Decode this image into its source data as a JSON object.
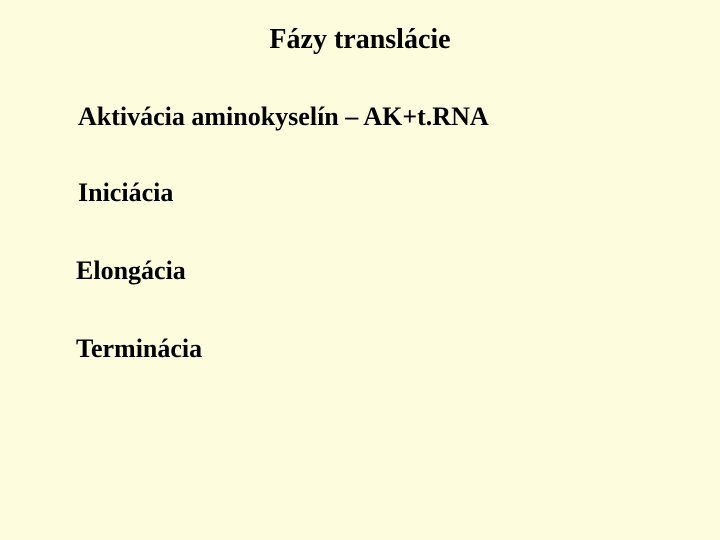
{
  "background_color": "#fdfddd",
  "text_color": "#000000",
  "font_family": "Times New Roman",
  "title": {
    "text": "Fázy translácie",
    "fontsize": 28,
    "bold": true
  },
  "lines": [
    {
      "text": "Aktivácia aminokyselín – AK+t.RNA",
      "fontsize": 26,
      "bold": true
    },
    {
      "text": "Iniciácia",
      "fontsize": 26,
      "bold": true
    },
    {
      "text": "Elongácia",
      "fontsize": 26,
      "bold": true
    },
    {
      "text": "Terminácia",
      "fontsize": 26,
      "bold": true
    }
  ]
}
